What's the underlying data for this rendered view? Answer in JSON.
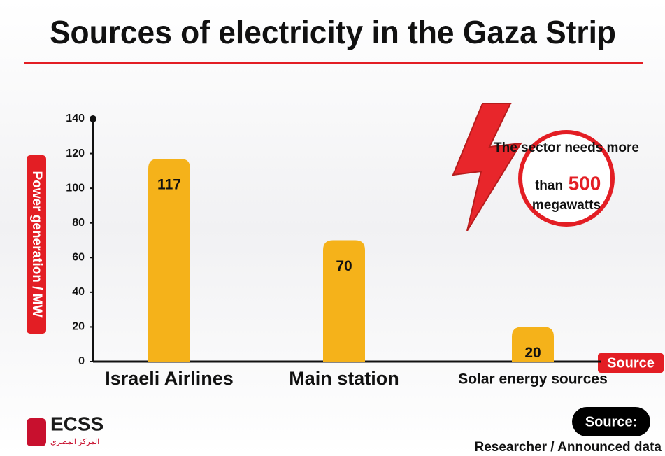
{
  "chart_data": {
    "type": "bar",
    "title": "Sources of electricity in the Gaza Strip",
    "y_label": "Power generation / MW",
    "x_label": "Source",
    "categories": [
      "Israeli Airlines",
      "Main station",
      "Solar energy sources"
    ],
    "values": [
      117,
      70,
      20
    ],
    "color": "#f5b21a",
    "ylim": [
      0,
      140
    ],
    "yticks": [
      0,
      20,
      40,
      60,
      80,
      100,
      120,
      140
    ],
    "annotation": {
      "before": "The sector needs more",
      "than": "than",
      "number": "500",
      "after": "megawatts"
    }
  },
  "footer": {
    "logo": "ECSS",
    "logo_subtitle": "المركز المصري",
    "source_label": "Source:",
    "source": "Researcher / Announced data"
  }
}
